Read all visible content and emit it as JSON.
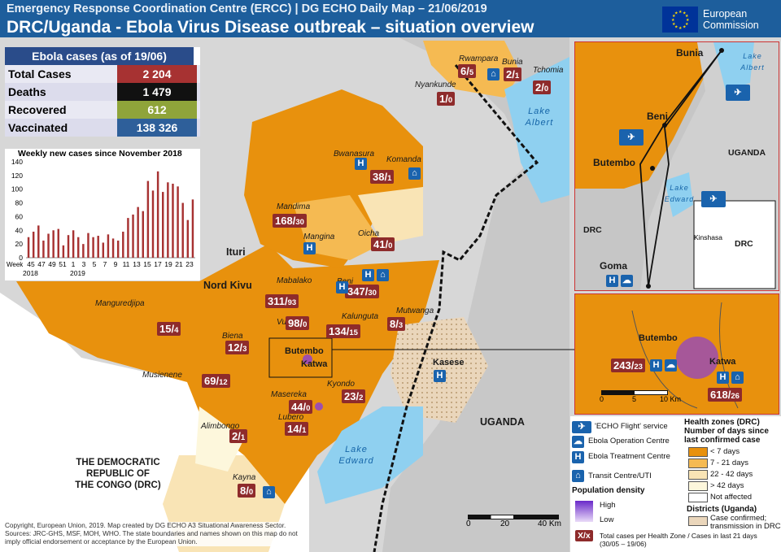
{
  "header": {
    "subtitle": "Emergency Response Coordination Centre (ERCC) | DG ECHO Daily Map – 21/06/2019",
    "title": "DRC/Uganda - Ebola Virus Disease outbreak – situation overview",
    "logo_line1": "European",
    "logo_line2": "Commission"
  },
  "stats": {
    "title": "Ebola cases (as of 19/06)",
    "rows": [
      {
        "label": "Total Cases",
        "value": "2 204",
        "color": "#a73232"
      },
      {
        "label": "Deaths",
        "value": "1 479",
        "color": "#111111"
      },
      {
        "label": "Recovered",
        "value": "612",
        "color": "#8fa43a"
      },
      {
        "label": "Vaccinated",
        "value": "138 326",
        "color": "#2e5f9a"
      }
    ],
    "row_bg": [
      "#e9e9f3",
      "#dcdcec",
      "#e9e9f3",
      "#dcdcec"
    ]
  },
  "chart_data": {
    "type": "bar",
    "title": "Weekly new cases since November 2018",
    "week_label": "Week",
    "x_tick_labels": [
      "45",
      "47",
      "49",
      "51",
      "1",
      "3",
      "5",
      "7",
      "9",
      "11",
      "13",
      "15",
      "17",
      "19",
      "21",
      "23"
    ],
    "year_labels": [
      "2018",
      "2019"
    ],
    "ylim": [
      0,
      140
    ],
    "y_ticks": [
      0,
      20,
      40,
      60,
      80,
      100,
      120,
      140
    ],
    "values": [
      30,
      38,
      47,
      25,
      35,
      40,
      42,
      18,
      33,
      40,
      30,
      20,
      36,
      30,
      32,
      22,
      34,
      28,
      25,
      38,
      58,
      63,
      74,
      68,
      112,
      98,
      126,
      96,
      110,
      108,
      104,
      80,
      55,
      85
    ],
    "bar_color": "#a73232"
  },
  "map": {
    "colors": {
      "lt7": "#e8910d",
      "d7_21": "#f5ba52",
      "d22_42": "#f9e4b5",
      "gt42": "#fdf7dc",
      "not_affected": "#ffffff",
      "outside": "#bdbdbd",
      "lake": "#8fd0f0",
      "uganda_hatch": "#ead6bb"
    },
    "regions": [
      {
        "id": "ituri",
        "text": "Ituri"
      },
      {
        "id": "nord-kivu",
        "text": "Nord Kivu"
      },
      {
        "id": "drc",
        "text": "THE DEMOCRATIC\nREPUBLIC OF\nTHE CONGO (DRC)"
      },
      {
        "id": "uganda",
        "text": "UGANDA"
      }
    ],
    "lakes": [
      {
        "id": "lake-albert",
        "text": "Lake\nAlbert"
      },
      {
        "id": "lake-edward",
        "text": "Lake\nEdward"
      }
    ],
    "zones": [
      {
        "name": "Rwampara",
        "cases": "6",
        "recent": "5"
      },
      {
        "name": "Bunia",
        "cases": "2",
        "recent": "1"
      },
      {
        "name": "Tchomia",
        "cases": "2",
        "recent": "0"
      },
      {
        "name": "Nyankunde",
        "cases": "1",
        "recent": "0"
      },
      {
        "name": "Bwanasura",
        "cases": "",
        "recent": ""
      },
      {
        "name": "Komanda",
        "cases": "38",
        "recent": "1"
      },
      {
        "name": "Mandima",
        "cases": "168",
        "recent": "30"
      },
      {
        "name": "Mangina",
        "cases": "",
        "recent": ""
      },
      {
        "name": "Oicha",
        "cases": "41",
        "recent": "0"
      },
      {
        "name": "Beni",
        "cases": "347",
        "recent": "30"
      },
      {
        "name": "Mabalako",
        "cases": "311",
        "recent": "93"
      },
      {
        "name": "Kalunguta",
        "cases": "134",
        "recent": "15"
      },
      {
        "name": "Mutwanga",
        "cases": "8",
        "recent": "3"
      },
      {
        "name": "Vuhovi",
        "cases": "98",
        "recent": "0"
      },
      {
        "name": "Manguredjipa",
        "cases": "15",
        "recent": "4"
      },
      {
        "name": "Biena",
        "cases": "12",
        "recent": "3"
      },
      {
        "name": "Butembo",
        "cases": "",
        "recent": ""
      },
      {
        "name": "Katwa",
        "cases": "",
        "recent": ""
      },
      {
        "name": "Musienene",
        "cases": "69",
        "recent": "12"
      },
      {
        "name": "Kyondo",
        "cases": "23",
        "recent": "2"
      },
      {
        "name": "Masereka",
        "cases": "44",
        "recent": "0"
      },
      {
        "name": "Lubero",
        "cases": "14",
        "recent": "1"
      },
      {
        "name": "Alimbongo",
        "cases": "2",
        "recent": "1"
      },
      {
        "name": "Kayna",
        "cases": "8",
        "recent": "0"
      },
      {
        "name": "Kasese",
        "cases": "",
        "recent": ""
      }
    ],
    "scale": {
      "labels": [
        "0",
        "20",
        "40 Km"
      ]
    }
  },
  "inset_top": {
    "places": [
      "Bunia",
      "Beni",
      "Butembo",
      "Goma",
      "Kinshasa",
      "DRC",
      "UGANDA",
      "DRC"
    ],
    "lakes": [
      "Lake\nAlbert",
      "Lake\nEdward"
    ]
  },
  "inset_zoom": {
    "places": [
      "Butembo",
      "Katwa"
    ],
    "badges": [
      {
        "cases": "243",
        "recent": "23"
      },
      {
        "cases": "618",
        "recent": "26"
      }
    ],
    "scale": {
      "labels": [
        "0",
        "5",
        "10 Km"
      ]
    }
  },
  "legend": {
    "flight": "'ECHO Flight' service",
    "operation_centre": "Ebola Operation Centre",
    "treatment_centre": "Ebola Treatment Centre",
    "transit_centre": "Transit Centre/UTI",
    "pop_title": "Population density",
    "pop_high": "High",
    "pop_low": "Low",
    "hz_title": "Health zones (DRC)\nNumber of days since\nlast confirmed case",
    "hz_items": [
      "< 7 days",
      "7 - 21 days",
      "22 - 42 days",
      "> 42 days",
      "Not affected"
    ],
    "district_title": "Districts (Uganda)",
    "district_item": "Case confirmed;\ntransmission in DRC",
    "badge_sample": "X/x",
    "badge_note": "Total cases per Health Zone / Cases in last 21 days\n(30/05 – 19/06)"
  },
  "credit": "Copyright, European Union, 2019. Map created by DG ECHO A3 Situational Awareness Sector. Sources: JRC-GHS, MSF, MOH, WHO. The state boundaries and names shown on this map do not imply official endorsement or acceptance by the European Union."
}
